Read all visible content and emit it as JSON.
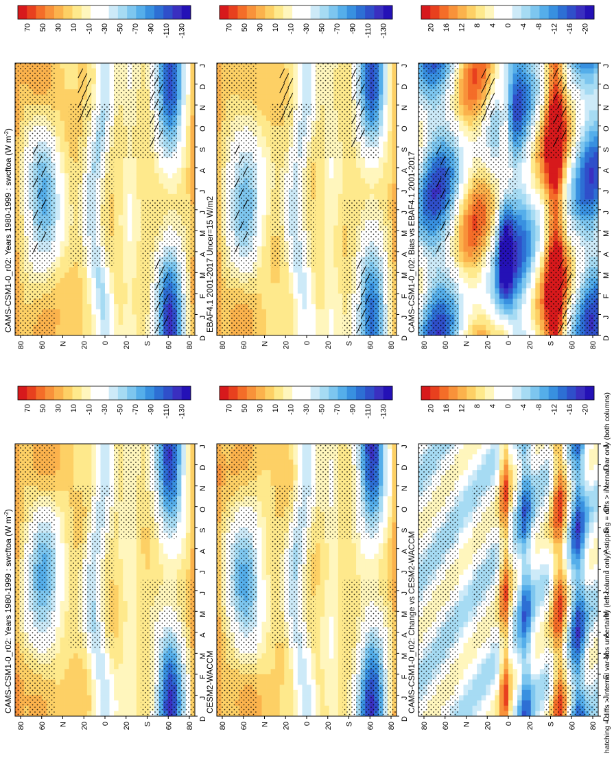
{
  "footnote": "hatching = diffs > internal var-obs uncertainty (left column only); stippling = diffs > internal var only (both columns)",
  "chart_data": [
    {
      "type": "heatmap",
      "title": "CAMS-CSM1-0_r02: Years 1980-1999 : swcftoa (W m",
      "title_sup": "-2",
      "title_close": ")",
      "months": [
        "D",
        "J",
        "F",
        "M",
        "A",
        "M",
        "J",
        "J",
        "A",
        "S",
        "O",
        "N",
        "D",
        "J"
      ],
      "lat_ticks": [
        "80",
        "60",
        "N",
        "20",
        "0",
        "20",
        "S",
        "60",
        "80"
      ],
      "colorbar_labels": [
        "70",
        "50",
        "30",
        "10",
        "-10",
        "-30",
        "-50",
        "-70",
        "-90",
        "-110",
        "-130"
      ],
      "hatching": true,
      "field": "mean"
    },
    {
      "type": "heatmap",
      "title": "CAMS-CSM1-0_r02: Years 1980-1999 : swcftoa (W m",
      "title_sup": "-2",
      "title_close": ")",
      "months": [
        "D",
        "J",
        "F",
        "M",
        "A",
        "M",
        "J",
        "J",
        "A",
        "S",
        "O",
        "N",
        "D",
        "J"
      ],
      "lat_ticks": [
        "80",
        "60",
        "N",
        "20",
        "0",
        "20",
        "S",
        "60",
        "80"
      ],
      "colorbar_labels": [
        "70",
        "50",
        "30",
        "10",
        "-10",
        "-30",
        "-50",
        "-70",
        "-90",
        "-110",
        "-130"
      ],
      "hatching": false,
      "field": "mean"
    },
    {
      "type": "heatmap",
      "title": "EBAF4.1 2001-2017 Uncer=15 W/m2",
      "months": [
        "D",
        "J",
        "F",
        "M",
        "A",
        "M",
        "J",
        "J",
        "A",
        "S",
        "O",
        "N",
        "D",
        "J"
      ],
      "lat_ticks": [
        "80",
        "60",
        "N",
        "20",
        "0",
        "20",
        "S",
        "60",
        "80"
      ],
      "colorbar_labels": [
        "70",
        "50",
        "30",
        "10",
        "-10",
        "-30",
        "-50",
        "-70",
        "-90",
        "-110",
        "-130"
      ],
      "hatching": true,
      "field": "obs"
    },
    {
      "type": "heatmap",
      "title": "CESM2-WACCM",
      "months": [
        "D",
        "J",
        "F",
        "M",
        "A",
        "M",
        "J",
        "J",
        "A",
        "S",
        "O",
        "N",
        "D",
        "J"
      ],
      "lat_ticks": [
        "80",
        "60",
        "N",
        "20",
        "0",
        "20",
        "S",
        "60",
        "80"
      ],
      "colorbar_labels": [
        "70",
        "50",
        "30",
        "10",
        "-10",
        "-30",
        "-50",
        "-70",
        "-90",
        "-110",
        "-130"
      ],
      "hatching": false,
      "field": "mean"
    },
    {
      "type": "heatmap",
      "title": "CAMS-CSM1-0_r02: Bias vs EBAF4.1 2001-2017",
      "months": [
        "D",
        "J",
        "F",
        "M",
        "A",
        "M",
        "J",
        "J",
        "A",
        "S",
        "O",
        "N",
        "D",
        "J"
      ],
      "lat_ticks": [
        "80",
        "60",
        "N",
        "20",
        "0",
        "20",
        "S",
        "60",
        "80"
      ],
      "colorbar_labels": [
        "20",
        "16",
        "12",
        "8",
        "4",
        "0",
        "-4",
        "-8",
        "-12",
        "-16",
        "-20"
      ],
      "hatching": true,
      "field": "bias"
    },
    {
      "type": "heatmap",
      "title": "CAMS-CSM1-0_r02: Change vs CESM2-WACCM",
      "months": [
        "D",
        "J",
        "F",
        "M",
        "A",
        "M",
        "J",
        "J",
        "A",
        "S",
        "O",
        "N",
        "D",
        "J"
      ],
      "lat_ticks": [
        "80",
        "60",
        "N",
        "20",
        "0",
        "20",
        "S",
        "60",
        "80"
      ],
      "colorbar_labels": [
        "20",
        "16",
        "12",
        "8",
        "4",
        "0",
        "-4",
        "-8",
        "-12",
        "-16",
        "-20"
      ],
      "hatching": false,
      "field": "change"
    }
  ],
  "colors": {
    "scale": [
      "#d7191c",
      "#e8401e",
      "#f46d28",
      "#f8923a",
      "#fbb24c",
      "#fdd065",
      "#fee98c",
      "#fff6bd",
      "#ffffff",
      "#ffffff",
      "#cdeaf8",
      "#a6dbf3",
      "#7dc6ef",
      "#55aeea",
      "#3890e0",
      "#2d6fd4",
      "#2f4fca",
      "#3a2fc0",
      "#2411b6"
    ]
  }
}
